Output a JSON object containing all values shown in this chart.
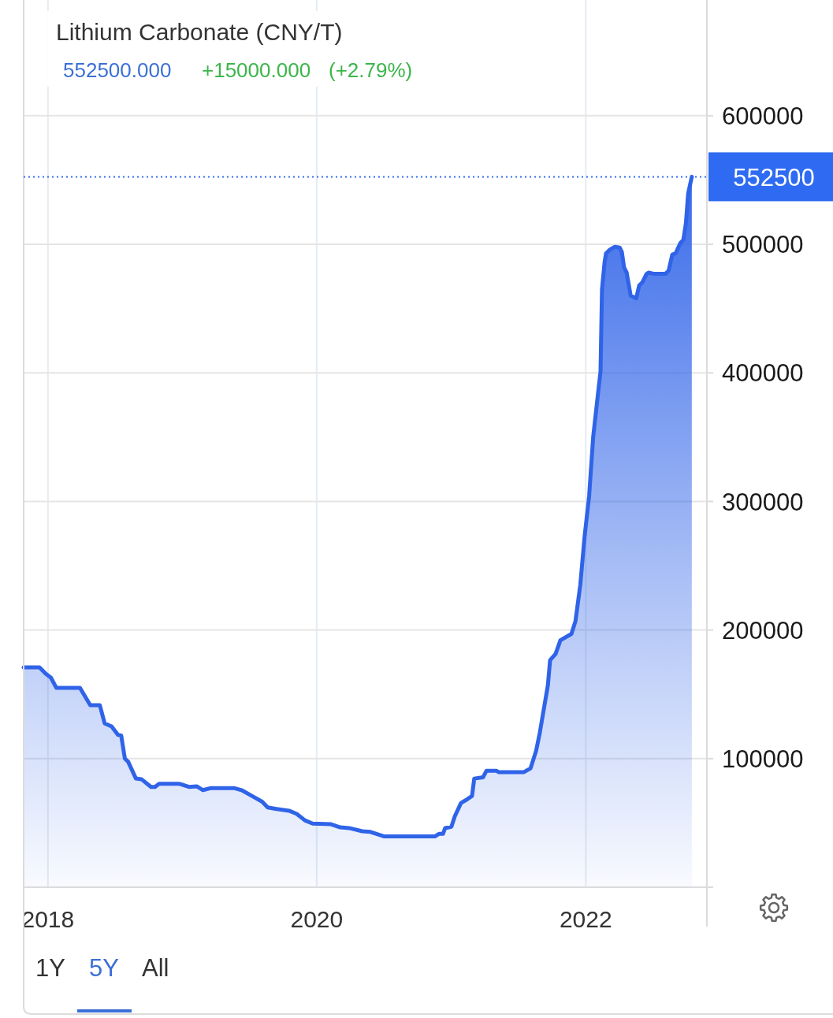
{
  "chart_data": {
    "type": "area",
    "title": "Lithium Carbonate (CNY/T)",
    "annotations": [
      "552500.000",
      "+15000.000",
      "(+2.79%)",
      "1Y",
      "5Y",
      "All"
    ],
    "x": [
      "2017-10-27",
      "2017-12-09",
      "2017-12-26",
      "2018-01-09",
      "2018-01-24",
      "2018-03-29",
      "2018-04-26",
      "2018-05-22",
      "2018-06-04",
      "2018-06-23",
      "2018-07-10",
      "2018-07-19",
      "2018-07-29",
      "2018-08-07",
      "2018-08-28",
      "2018-09-12",
      "2018-10-08",
      "2018-10-19",
      "2018-10-30",
      "2018-12-22",
      "2019-01-04",
      "2019-01-19",
      "2019-02-09",
      "2019-02-26",
      "2019-03-18",
      "2019-05-23",
      "2019-06-11",
      "2019-07-09",
      "2019-08-06",
      "2019-08-21",
      "2019-09-11",
      "2019-10-18",
      "2019-11-08",
      "2019-11-30",
      "2019-12-21",
      "2020-02-09",
      "2020-03-05",
      "2020-03-29",
      "2020-05-04",
      "2020-05-26",
      "2020-07-03",
      "2020-11-17",
      "2020-11-28",
      "2020-12-09",
      "2020-12-15",
      "2021-01-01",
      "2021-01-10",
      "2021-01-27",
      "2021-02-11",
      "2021-02-26",
      "2021-03-04",
      "2021-03-28",
      "2021-04-06",
      "2021-05-03",
      "2021-05-10",
      "2021-07-17",
      "2021-08-04",
      "2021-08-19",
      "2021-08-29",
      "2021-09-20",
      "2021-09-26",
      "2021-10-11",
      "2021-10-24",
      "2021-11-23",
      "2021-12-04",
      "2021-12-17",
      "2021-12-29",
      "2022-01-10",
      "2022-01-21",
      "2022-02-04",
      "2022-02-10",
      "2022-02-14",
      "2022-02-21",
      "2022-02-25",
      "2022-03-08",
      "2022-03-21",
      "2022-04-03",
      "2022-04-09",
      "2022-04-15",
      "2022-04-22",
      "2022-05-03",
      "2022-05-18",
      "2022-05-26",
      "2022-06-04",
      "2022-06-15",
      "2022-06-21",
      "2022-07-06",
      "2022-08-05",
      "2022-08-14",
      "2022-08-24",
      "2022-09-02",
      "2022-09-15",
      "2022-09-23",
      "2022-09-30",
      "2022-10-06",
      "2022-10-16"
    ],
    "values": [
      171000,
      171000,
      166000,
      163000,
      155000,
      155000,
      141500,
      141500,
      127500,
      125000,
      118500,
      118000,
      100000,
      97500,
      84500,
      84000,
      78000,
      78000,
      80500,
      80500,
      79500,
      78000,
      78500,
      75500,
      77000,
      77000,
      75500,
      71000,
      66500,
      62000,
      61000,
      59500,
      57000,
      52000,
      49500,
      49000,
      46500,
      46000,
      43500,
      43000,
      39500,
      39500,
      41500,
      41500,
      46000,
      47000,
      55000,
      65500,
      68000,
      71000,
      84500,
      85500,
      90500,
      90500,
      89500,
      89500,
      92500,
      106000,
      120000,
      157000,
      176500,
      181500,
      192000,
      197000,
      207000,
      235000,
      273500,
      304000,
      350000,
      386000,
      401000,
      465000,
      486000,
      493000,
      496000,
      498000,
      497500,
      494000,
      482000,
      478000,
      460000,
      458000,
      468000,
      470500,
      477000,
      478000,
      477000,
      477000,
      479500,
      492000,
      493000,
      501000,
      503500,
      516500,
      539500,
      552500
    ],
    "color": "#2f63e8",
    "xlim": [
      "2017-10-27",
      "2022-11-26"
    ],
    "xticks": [
      "2018",
      "2020",
      "2022"
    ],
    "ylim": [
      0,
      690000
    ],
    "yticks": [
      100000,
      200000,
      300000,
      400000,
      500000,
      600000
    ],
    "grid": true,
    "ref_lines": [
      {
        "axis": "y",
        "value": 552500,
        "label": "552500",
        "color": "#2f6bf2",
        "line_style": "dotted"
      }
    ]
  }
}
